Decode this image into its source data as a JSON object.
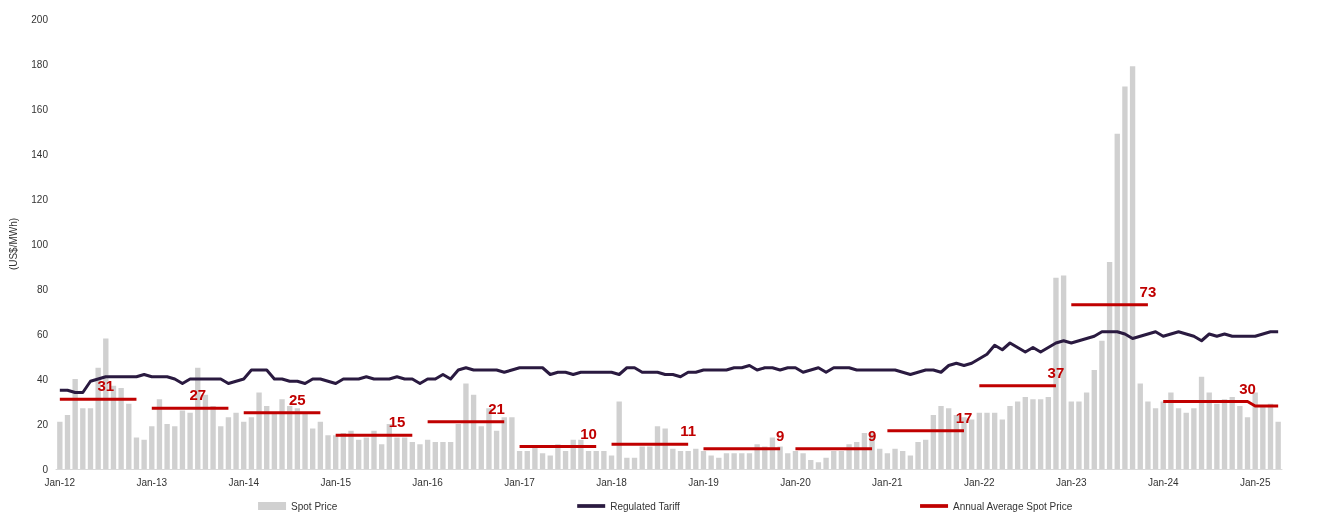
{
  "chart_data": {
    "type": "bar",
    "ylabel": "(US$/MWh)",
    "ylim": [
      0,
      200
    ],
    "yticks": [
      0,
      20,
      40,
      60,
      80,
      100,
      120,
      140,
      160,
      180,
      200
    ],
    "grid": false,
    "legend": "bottom",
    "marker": "none",
    "categories": [
      "Jan-12",
      null,
      null,
      null,
      null,
      null,
      null,
      null,
      null,
      null,
      null,
      null,
      "Jan-13",
      null,
      null,
      null,
      null,
      null,
      null,
      null,
      null,
      null,
      null,
      null,
      "Jan-14",
      null,
      null,
      null,
      null,
      null,
      null,
      null,
      null,
      null,
      null,
      null,
      "Jan-15",
      null,
      null,
      null,
      null,
      null,
      null,
      null,
      null,
      null,
      null,
      null,
      "Jan-16",
      null,
      null,
      null,
      null,
      null,
      null,
      null,
      null,
      null,
      null,
      null,
      "Jan-17",
      null,
      null,
      null,
      null,
      null,
      null,
      null,
      null,
      null,
      null,
      null,
      "Jan-18",
      null,
      null,
      null,
      null,
      null,
      null,
      null,
      null,
      null,
      null,
      null,
      "Jan-19",
      null,
      null,
      null,
      null,
      null,
      null,
      null,
      null,
      null,
      null,
      null,
      "Jan-20",
      null,
      null,
      null,
      null,
      null,
      null,
      null,
      null,
      null,
      null,
      null,
      "Jan-21",
      null,
      null,
      null,
      null,
      null,
      null,
      null,
      null,
      null,
      null,
      null,
      "Jan-22",
      null,
      null,
      null,
      null,
      null,
      null,
      null,
      null,
      null,
      null,
      null,
      "Jan-23",
      null,
      null,
      null,
      null,
      null,
      null,
      null,
      null,
      null,
      null,
      null,
      "Jan-24",
      null,
      null,
      null,
      null,
      null,
      null,
      null,
      null,
      null,
      null,
      null,
      "Jan-25",
      null,
      null,
      null
    ],
    "series": [
      {
        "name": "Spot Price",
        "color": "#d0d0d0",
        "values": [
          21,
          24,
          40,
          27,
          27,
          45,
          58,
          37,
          36,
          29,
          14,
          13,
          19,
          31,
          20,
          19,
          26,
          25,
          45,
          33,
          28,
          19,
          23,
          25,
          21,
          23,
          34,
          28,
          25,
          31,
          28,
          27,
          25,
          18,
          21,
          15,
          15,
          16,
          17,
          13,
          14,
          17,
          11,
          20,
          14,
          14,
          12,
          11,
          13,
          12,
          12,
          12,
          20,
          38,
          33,
          19,
          27,
          17,
          23,
          23,
          8,
          8,
          10,
          7,
          6,
          11,
          8,
          13,
          13,
          8,
          8,
          8,
          6,
          30,
          5,
          5,
          10,
          10,
          19,
          18,
          9,
          8,
          8,
          9,
          8,
          6,
          5,
          7,
          7,
          7,
          7,
          11,
          10,
          14,
          10,
          7,
          8,
          7,
          4,
          3,
          5,
          8,
          8,
          11,
          12,
          16,
          16,
          9,
          7,
          9,
          8,
          6,
          12,
          13,
          24,
          28,
          27,
          24,
          23,
          22,
          25,
          25,
          25,
          22,
          28,
          30,
          32,
          31,
          31,
          32,
          85,
          86,
          30,
          30,
          34,
          44,
          57,
          92,
          149,
          170,
          179,
          38,
          30,
          27,
          30,
          34,
          27,
          25,
          27,
          41,
          34,
          29,
          31,
          32,
          28,
          23,
          34,
          28,
          29,
          21
        ]
      },
      {
        "name": "Regulated Tariff",
        "type": "line",
        "color": "#2a1a40",
        "values": [
          35,
          35,
          34,
          34,
          39,
          40,
          41,
          41,
          41,
          41,
          41,
          42,
          41,
          41,
          41,
          40,
          38,
          40,
          40,
          40,
          40,
          40,
          38,
          39,
          40,
          44,
          44,
          44,
          40,
          40,
          39,
          39,
          38,
          40,
          40,
          39,
          38,
          40,
          40,
          40,
          41,
          40,
          40,
          40,
          41,
          40,
          40,
          38,
          40,
          40,
          42,
          40,
          44,
          45,
          44,
          44,
          44,
          44,
          43,
          44,
          45,
          45,
          45,
          45,
          42,
          43,
          43,
          42,
          43,
          43,
          43,
          43,
          43,
          42,
          45,
          45,
          43,
          43,
          43,
          42,
          42,
          41,
          43,
          43,
          44,
          44,
          44,
          44,
          45,
          45,
          46,
          44,
          45,
          45,
          44,
          45,
          45,
          43,
          44,
          45,
          43,
          45,
          45,
          45,
          44,
          44,
          44,
          44,
          44,
          44,
          43,
          42,
          43,
          44,
          44,
          43,
          46,
          47,
          46,
          47,
          49,
          51,
          55,
          53,
          56,
          54,
          52,
          54,
          52,
          54,
          56,
          57,
          56,
          57,
          58,
          59,
          61,
          61,
          61,
          60,
          58,
          59,
          60,
          61,
          59,
          60,
          61,
          60,
          59,
          57,
          60,
          59,
          60,
          59,
          59,
          59,
          59,
          60,
          61,
          61
        ]
      },
      {
        "name": "Annual Average Spot Price",
        "type": "line",
        "color": "#c00000",
        "values": [
          31,
          31,
          31,
          31,
          31,
          31,
          31,
          31,
          31,
          31,
          31,
          null,
          27,
          27,
          27,
          27,
          27,
          27,
          27,
          27,
          27,
          27,
          27,
          null,
          25,
          25,
          25,
          25,
          25,
          25,
          25,
          25,
          25,
          25,
          25,
          null,
          15,
          15,
          15,
          15,
          15,
          15,
          15,
          15,
          15,
          15,
          15,
          null,
          21,
          21,
          21,
          21,
          21,
          21,
          21,
          21,
          21,
          21,
          21,
          null,
          10,
          10,
          10,
          10,
          10,
          10,
          10,
          10,
          10,
          10,
          10,
          null,
          11,
          11,
          11,
          11,
          11,
          11,
          11,
          11,
          11,
          11,
          11,
          null,
          9,
          9,
          9,
          9,
          9,
          9,
          9,
          9,
          9,
          9,
          9,
          null,
          9,
          9,
          9,
          9,
          9,
          9,
          9,
          9,
          9,
          9,
          9,
          null,
          17,
          17,
          17,
          17,
          17,
          17,
          17,
          17,
          17,
          17,
          17,
          null,
          37,
          37,
          37,
          37,
          37,
          37,
          37,
          37,
          37,
          37,
          37,
          null,
          73,
          73,
          73,
          73,
          73,
          73,
          73,
          73,
          73,
          73,
          73,
          null,
          30,
          30,
          30,
          30,
          30,
          30,
          30,
          30,
          30,
          30,
          30,
          30,
          28,
          28,
          28,
          28
        ],
        "value_labels": [
          null,
          null,
          null,
          null,
          null,
          null,
          "31",
          null,
          null,
          null,
          null,
          null,
          null,
          null,
          null,
          null,
          null,
          null,
          "27",
          null,
          null,
          null,
          null,
          null,
          null,
          null,
          null,
          null,
          null,
          null,
          null,
          "25",
          null,
          null,
          null,
          null,
          null,
          null,
          null,
          null,
          null,
          null,
          null,
          null,
          "15",
          null,
          null,
          null,
          null,
          null,
          null,
          null,
          null,
          null,
          null,
          null,
          null,
          "21",
          null,
          null,
          null,
          null,
          null,
          null,
          null,
          null,
          null,
          null,
          null,
          "10",
          null,
          null,
          null,
          null,
          null,
          null,
          null,
          null,
          null,
          null,
          null,
          null,
          "11",
          null,
          null,
          null,
          null,
          null,
          null,
          null,
          null,
          null,
          null,
          null,
          "9",
          null,
          null,
          null,
          null,
          null,
          null,
          null,
          null,
          null,
          null,
          null,
          "9",
          null,
          null,
          null,
          null,
          null,
          null,
          null,
          null,
          null,
          null,
          null,
          "17",
          null,
          null,
          null,
          null,
          null,
          null,
          null,
          null,
          null,
          null,
          null,
          "37",
          null,
          null,
          null,
          null,
          null,
          null,
          null,
          null,
          null,
          null,
          null,
          "73",
          null,
          null,
          null,
          null,
          null,
          null,
          null,
          null,
          null,
          null,
          null,
          null,
          "30",
          null,
          null,
          null,
          null
        ]
      }
    ]
  }
}
